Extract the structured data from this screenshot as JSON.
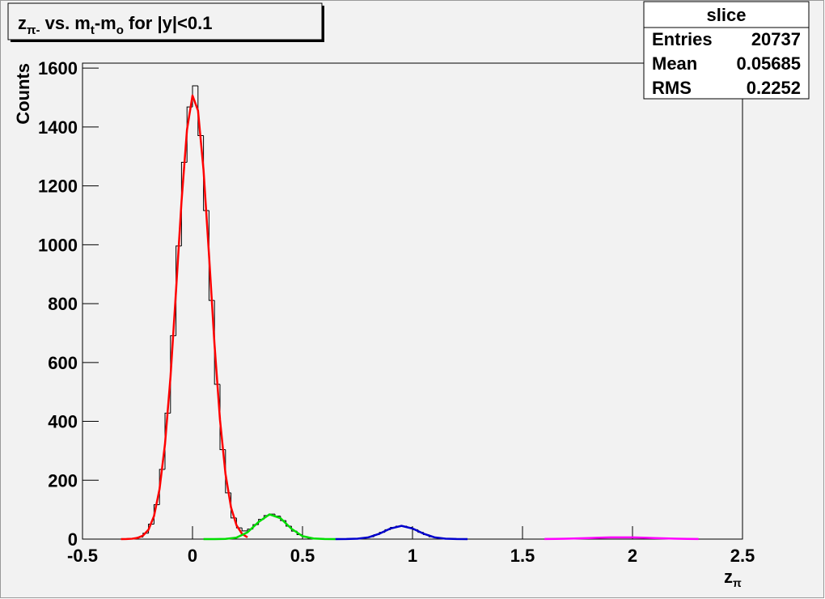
{
  "chart_data": {
    "type": "histogram",
    "title": [
      "z",
      "π-",
      " vs. m",
      "t",
      "-m",
      "o",
      " for |y|<0.1"
    ],
    "xlabel": [
      "z",
      "π"
    ],
    "ylabel": "Counts",
    "xlim": [
      -0.5,
      2.5
    ],
    "ylim": [
      0,
      1617
    ],
    "xticks": [
      -0.5,
      0,
      0.5,
      1,
      1.5,
      2,
      2.5
    ],
    "yticks": [
      0,
      200,
      400,
      600,
      800,
      1000,
      1200,
      1400,
      1600
    ],
    "color": "#000000",
    "bins": [
      -0.5,
      -0.475,
      -0.45,
      -0.425,
      -0.4,
      -0.375,
      -0.35,
      -0.325,
      -0.3,
      -0.275,
      -0.25,
      -0.225,
      -0.2,
      -0.175,
      -0.15,
      -0.125,
      -0.1,
      -0.075,
      -0.05,
      -0.025,
      0,
      0.025,
      0.05,
      0.075,
      0.1,
      0.125,
      0.15,
      0.175,
      0.2,
      0.225,
      0.25,
      0.275,
      0.3,
      0.325,
      0.35,
      0.375,
      0.4,
      0.425,
      0.45,
      0.475,
      0.5,
      0.525,
      0.55,
      0.575,
      0.6,
      0.625,
      0.65,
      0.675,
      0.7,
      0.725,
      0.75,
      0.775,
      0.8,
      0.825,
      0.85,
      0.875,
      0.9,
      0.925,
      0.95,
      0.975,
      1,
      1.025,
      1.05,
      1.075,
      1.1,
      1.125,
      1.15,
      1.175,
      1.2,
      1.225,
      1.25,
      1.275,
      1.3,
      1.325,
      1.35,
      1.375,
      1.4,
      1.425,
      1.45,
      1.475,
      1.5,
      1.525,
      1.55,
      1.575,
      1.6,
      1.625,
      1.65,
      1.675,
      1.7,
      1.725,
      1.75,
      1.775,
      1.8,
      1.825,
      1.85,
      1.875,
      1.9,
      1.925,
      1.95,
      1.975,
      2,
      2.025,
      2.05,
      2.075,
      2.1,
      2.125,
      2.15,
      2.175,
      2.2,
      2.225,
      2.25,
      2.275,
      2.3,
      2.325,
      2.35,
      2.375,
      2.4,
      2.425,
      2.45,
      2.475,
      2.5
    ],
    "counts": [
      0,
      0,
      0,
      0,
      0,
      0,
      0,
      0,
      1,
      2,
      7,
      20,
      51,
      117,
      237,
      428,
      691,
      996,
      1280,
      1468,
      1540,
      1371,
      1116,
      811,
      526,
      304,
      157,
      72,
      38,
      28,
      34,
      49,
      67,
      80,
      85,
      78,
      63,
      44,
      27,
      15,
      7,
      3,
      1,
      0,
      0,
      0,
      0,
      0,
      0,
      1,
      2,
      4,
      8,
      15,
      23,
      32,
      40,
      44,
      44,
      40,
      32,
      23,
      15,
      8,
      4,
      2,
      1,
      0,
      0,
      0,
      0,
      0,
      0,
      0,
      0,
      0,
      0,
      0,
      0,
      0,
      0,
      0,
      0,
      0,
      0,
      0,
      1,
      1,
      2,
      2,
      3,
      3,
      4,
      5,
      5,
      6,
      6,
      6,
      6,
      6,
      5,
      5,
      4,
      3,
      3,
      2,
      2,
      1,
      1,
      1,
      0,
      0,
      0,
      0,
      0,
      0,
      0,
      0,
      0,
      0
    ],
    "series": [
      {
        "color": "#ff0000",
        "x": [
          -0.325,
          -0.3,
          -0.275,
          -0.25,
          -0.225,
          -0.2,
          -0.175,
          -0.15,
          -0.125,
          -0.1,
          -0.075,
          -0.05,
          -0.025,
          0,
          0.025,
          0.05,
          0.075,
          0.1,
          0.125,
          0.15,
          0.175,
          0.2,
          0.225,
          0.25
        ],
        "values": [
          0,
          0.3,
          1.2,
          4,
          12,
          32,
          78,
          169,
          323,
          551,
          842,
          1146,
          1391,
          1507,
          1456,
          1255,
          966,
          662,
          405,
          221,
          108,
          47,
          18,
          6
        ]
      },
      {
        "color": "#00dd00",
        "x": [
          0.05,
          0.1,
          0.15,
          0.2,
          0.25,
          0.3,
          0.35,
          0.4,
          0.45,
          0.5,
          0.55,
          0.6,
          0.65
        ],
        "values": [
          0,
          0.06,
          0.7,
          5,
          23,
          58,
          84,
          71,
          35,
          10,
          2,
          0.2,
          0
        ]
      },
      {
        "color": "#0000cc",
        "x": [
          0.65,
          0.7,
          0.75,
          0.8,
          0.85,
          0.9,
          0.95,
          1,
          1.05,
          1.1,
          1.15,
          1.2,
          1.25
        ],
        "values": [
          0,
          0.2,
          1.3,
          6,
          18.5,
          36,
          45,
          36,
          18.5,
          6,
          1.3,
          0.2,
          0
        ]
      },
      {
        "color": "#ff00ff",
        "x": [
          1.6,
          1.65,
          1.7,
          1.75,
          1.8,
          1.85,
          1.9,
          1.95,
          2,
          2.05,
          2.1,
          2.15,
          2.2,
          2.25,
          2.3
        ],
        "values": [
          0.4,
          0.8,
          1.5,
          2.5,
          3.6,
          4.8,
          5.7,
          6,
          5.7,
          4.8,
          3.6,
          2.5,
          1.5,
          0.8,
          0.4
        ]
      }
    ],
    "stats": {
      "title": "slice",
      "rows": [
        [
          "Entries",
          20737
        ],
        [
          "Mean",
          0.05685
        ],
        [
          "RMS",
          0.2252
        ]
      ]
    }
  }
}
